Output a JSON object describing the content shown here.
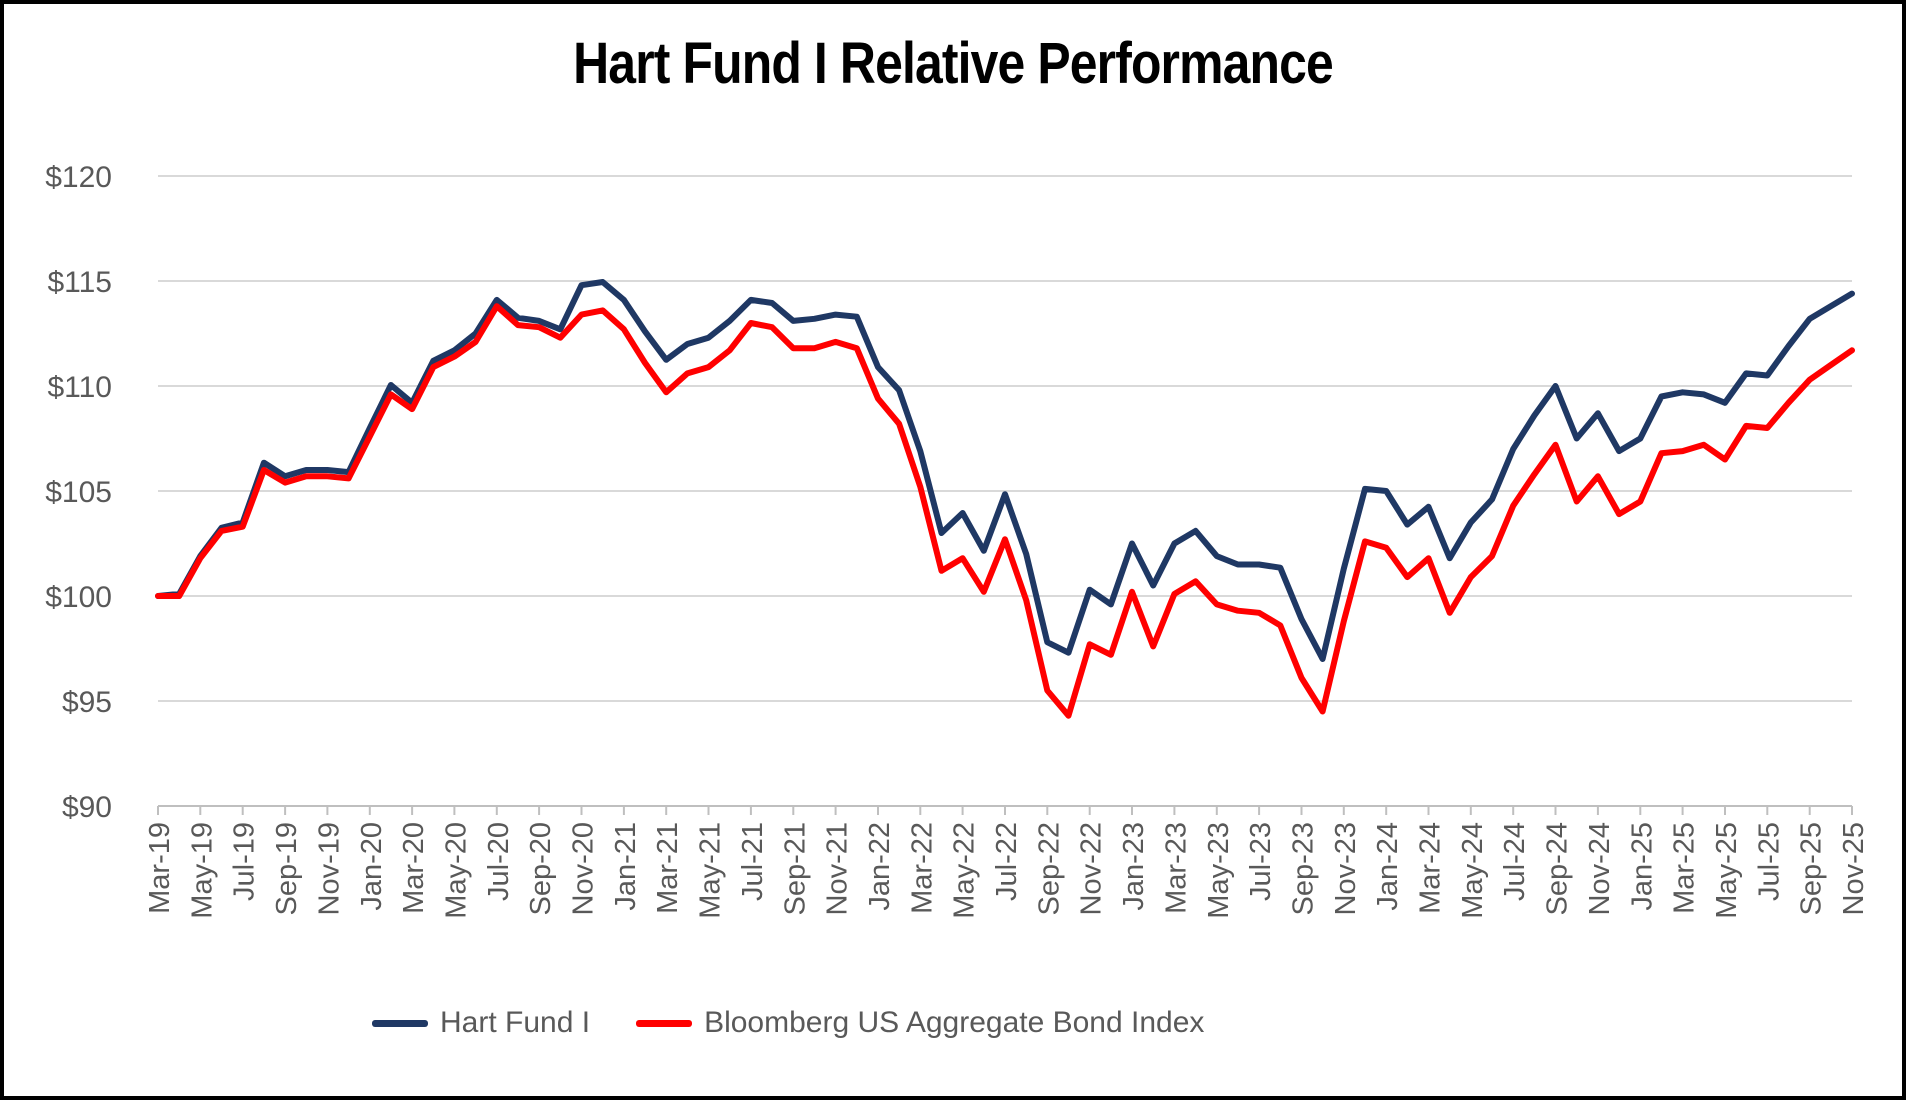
{
  "title": "Hart Fund I Relative Performance",
  "colors": {
    "hart_fund": "#1f3864",
    "bloomberg_index": "#ff0000",
    "gridline": "#d9d9d9",
    "axis_line": "#bfbfbf",
    "axis_text": "#595959",
    "title_text": "#000000",
    "background": "#ffffff",
    "border": "#000000"
  },
  "legend": {
    "items": [
      {
        "label": "Hart Fund I",
        "color": "#1f3864"
      },
      {
        "label": "Bloomberg US Aggregate Bond Index",
        "color": "#ff0000"
      }
    ]
  },
  "chart_data": {
    "type": "line",
    "title": "Hart Fund I Relative Performance",
    "xlabel": "",
    "ylabel": "",
    "ylim": [
      90,
      120
    ],
    "grid": "horizontal",
    "legend_position": "bottom",
    "y_tick_labels": [
      "$120",
      "$115",
      "$110",
      "$105",
      "$100",
      "$95",
      "$90"
    ],
    "y_tick_values": [
      120,
      115,
      110,
      105,
      100,
      95,
      90
    ],
    "x_label_every": 2,
    "x_labels": [
      "Mar-19",
      "May-19",
      "Jul-19",
      "Sep-19",
      "Nov-19",
      "Jan-20",
      "Mar-20",
      "May-20",
      "Jul-20",
      "Sep-20",
      "Nov-20",
      "Jan-21",
      "Mar-21",
      "May-21",
      "Jul-21",
      "Sep-21",
      "Nov-21",
      "Jan-22",
      "Mar-22",
      "May-22",
      "Jul-22",
      "Sep-22",
      "Nov-22",
      "Jan-23",
      "Mar-23",
      "May-23",
      "Jul-23",
      "Sep-23",
      "Nov-23",
      "Jan-24",
      "Mar-24",
      "May-24",
      "Jul-24",
      "Sep-24",
      "Nov-24",
      "Jan-25",
      "Mar-25",
      "May-25",
      "Jul-25",
      "Sep-25",
      "Nov-25"
    ],
    "x_period": "monthly from Mar-19 to Nov-25",
    "series": [
      {
        "name": "Hart Fund I",
        "color": "#1f3864",
        "values": [
          100.0,
          100.1,
          101.9,
          103.25,
          103.5,
          106.35,
          105.7,
          106.0,
          106.0,
          105.9,
          108.0,
          110.05,
          109.2,
          111.2,
          111.7,
          112.5,
          114.1,
          113.25,
          113.1,
          112.7,
          114.8,
          114.95,
          114.1,
          112.6,
          111.25,
          112.0,
          112.3,
          113.1,
          114.1,
          113.95,
          113.1,
          113.2,
          113.4,
          113.3,
          110.9,
          109.8,
          106.9,
          103.0,
          103.95,
          102.15,
          104.85,
          102.0,
          97.8,
          97.3,
          100.3,
          99.6,
          102.5,
          100.5,
          102.5,
          103.1,
          101.9,
          101.5,
          101.5,
          101.35,
          98.9,
          97.0,
          101.3,
          105.1,
          105.0,
          103.4,
          104.25,
          101.8,
          103.5,
          104.6,
          107.0,
          108.6,
          110.0,
          107.5,
          108.7,
          106.9,
          107.5,
          109.5,
          109.7,
          109.6,
          109.2,
          110.6,
          110.5,
          111.9,
          113.2,
          113.8,
          114.4
        ]
      },
      {
        "name": "Bloomberg US Aggregate Bond Index",
        "color": "#ff0000",
        "values": [
          100.0,
          100.0,
          101.8,
          103.1,
          103.3,
          106.0,
          105.4,
          105.7,
          105.7,
          105.6,
          107.6,
          109.6,
          108.9,
          110.9,
          111.4,
          112.1,
          113.8,
          112.9,
          112.8,
          112.3,
          113.4,
          113.6,
          112.7,
          111.1,
          109.7,
          110.6,
          110.9,
          111.7,
          113.0,
          112.8,
          111.8,
          111.8,
          112.1,
          111.8,
          109.4,
          108.2,
          105.2,
          101.2,
          101.8,
          100.2,
          102.7,
          99.8,
          95.5,
          94.3,
          97.7,
          97.2,
          100.2,
          97.6,
          100.1,
          100.7,
          99.6,
          99.3,
          99.2,
          98.6,
          96.1,
          94.5,
          98.8,
          102.6,
          102.3,
          100.9,
          101.8,
          99.2,
          100.9,
          101.9,
          104.3,
          105.8,
          107.2,
          104.5,
          105.7,
          103.9,
          104.5,
          106.8,
          106.9,
          107.2,
          106.5,
          108.1,
          108.0,
          109.2,
          110.3,
          111.0,
          111.7
        ]
      }
    ]
  }
}
